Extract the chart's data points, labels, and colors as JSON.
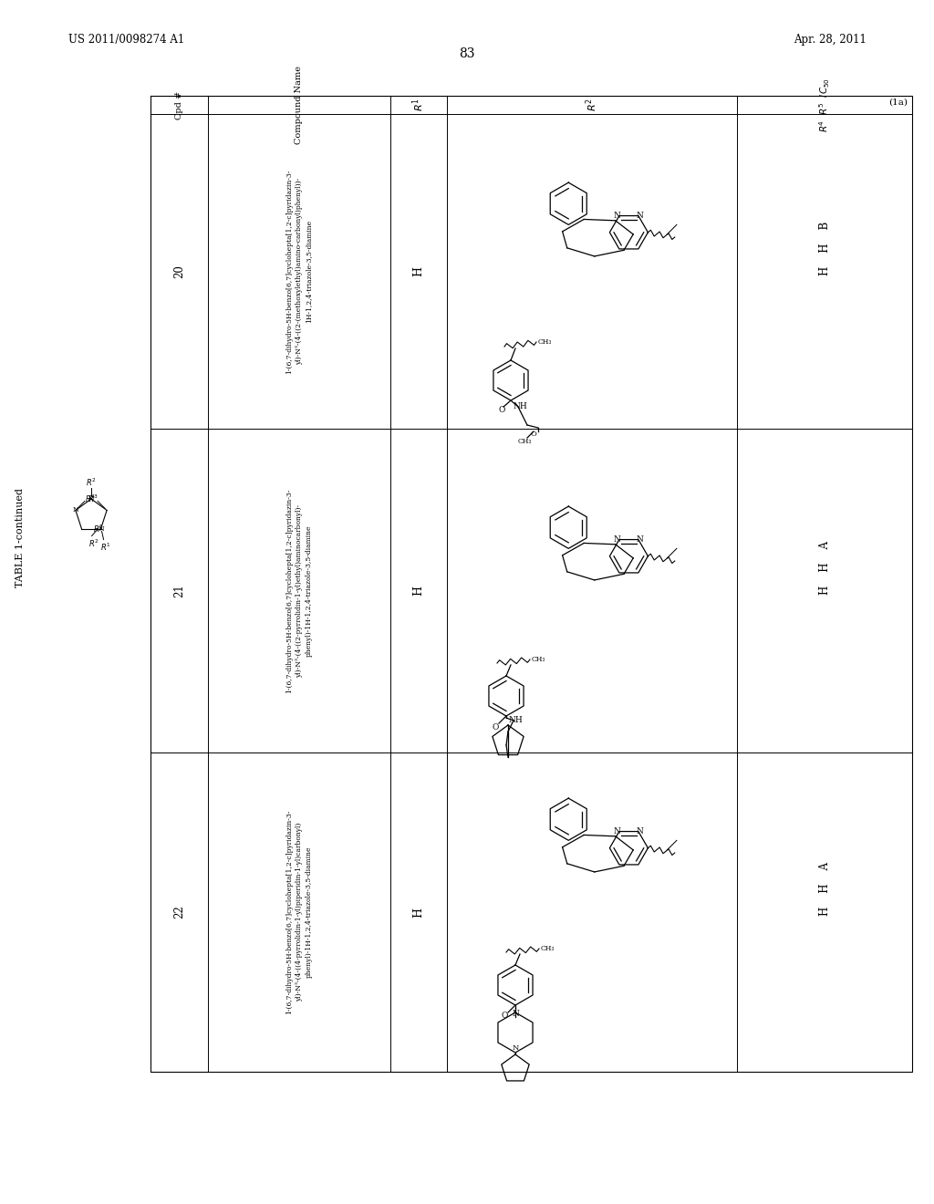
{
  "title_left": "US 2011/0098274 A1",
  "title_right": "Apr. 28, 2011",
  "page_number": "83",
  "table_title": "TABLE 1-continued",
  "table_label": "(1a)",
  "bg_color": "#ffffff",
  "text_color": "#000000",
  "rows": [
    {
      "cpd": "20",
      "r1": "H",
      "r4": "H",
      "r5": "H",
      "ic50": "B",
      "name_lines": [
        "1-(6,7-dihydro-5H-benzo[6,7]cyclohepta[1,2-c]pyridazin-3-",
        "yl)-N³-(4-((2-(methoxylethyl)amino-carbonyl)phenyl))-",
        "1H-1,2,4-triazole-3,5-diamine"
      ]
    },
    {
      "cpd": "21",
      "r1": "H",
      "r4": "H",
      "r5": "H",
      "ic50": "A",
      "name_lines": [
        "1-(6,7-dihydro-5H-benzo[6,7]cyclohepta[1,2-c]pyridazin-3-",
        "yl)-N³-(4-((2-pyrrolidin-1-yl)ethyl)aminocarbonyl)-",
        "phenyl)-1H-1,2,4-triazole-3,5-diamine"
      ]
    },
    {
      "cpd": "22",
      "r1": "H",
      "r4": "H",
      "r5": "H",
      "ic50": "A",
      "name_lines": [
        "1-(6,7-dihydro-5H-benzo[6,7]cyclohepta[1,2-c]pyridazin-3-",
        "yl)-N³-(4-((4-pyrrolidin-1-yl)piperidin-1-yl)carbonyl)",
        "phenyl)-1H-1,2,4-triazole-3,5-diamine"
      ]
    }
  ]
}
